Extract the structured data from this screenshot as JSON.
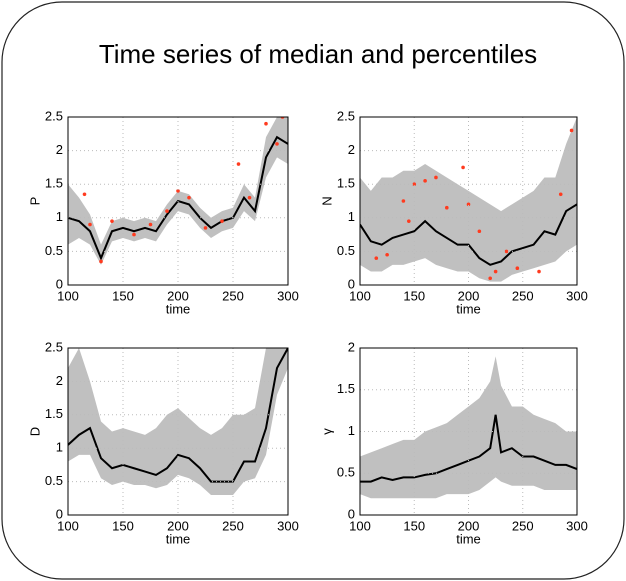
{
  "title": "Time series of median and percentiles",
  "chart_data": [
    {
      "type": "line",
      "ylabel": "P",
      "xlabel": "time",
      "xlim": [
        100,
        300
      ],
      "ylim": [
        0,
        2.5
      ],
      "xticks": [
        100,
        150,
        200,
        250,
        300
      ],
      "yticks": [
        0,
        0.5,
        1,
        1.5,
        2,
        2.5
      ],
      "grid": true,
      "x": [
        100,
        110,
        120,
        130,
        140,
        150,
        160,
        170,
        180,
        190,
        200,
        210,
        220,
        230,
        240,
        250,
        260,
        270,
        280,
        290,
        300
      ],
      "series": [
        {
          "color": "#000000",
          "values": [
            1.0,
            0.95,
            0.8,
            0.4,
            0.8,
            0.85,
            0.8,
            0.85,
            0.8,
            1.05,
            1.25,
            1.2,
            1.0,
            0.85,
            0.95,
            1.0,
            1.3,
            1.1,
            1.9,
            2.2,
            2.1
          ]
        }
      ],
      "band": {
        "color": "#c0c0c0",
        "lower": [
          0.6,
          0.7,
          0.6,
          0.3,
          0.65,
          0.7,
          0.65,
          0.7,
          0.65,
          0.9,
          1.1,
          1.05,
          0.85,
          0.7,
          0.8,
          0.85,
          1.1,
          0.95,
          1.6,
          1.9,
          1.8
        ],
        "upper": [
          1.5,
          1.3,
          1.05,
          0.6,
          0.95,
          1.0,
          0.95,
          1.0,
          0.95,
          1.2,
          1.4,
          1.35,
          1.15,
          1.0,
          1.1,
          1.15,
          1.5,
          1.3,
          2.2,
          2.5,
          2.5
        ]
      },
      "points": {
        "color": "#ff3b1f",
        "x": [
          115,
          120,
          130,
          140,
          160,
          175,
          190,
          200,
          210,
          225,
          240,
          255,
          265,
          280,
          290,
          295
        ],
        "values": [
          1.35,
          0.9,
          0.35,
          0.95,
          0.75,
          0.9,
          1.1,
          1.4,
          1.3,
          0.85,
          0.95,
          1.8,
          1.3,
          2.4,
          2.1,
          2.5
        ]
      }
    },
    {
      "type": "line",
      "ylabel": "N",
      "xlabel": "time",
      "xlim": [
        100,
        300
      ],
      "ylim": [
        0,
        2.5
      ],
      "xticks": [
        100,
        150,
        200,
        250,
        300
      ],
      "yticks": [
        0,
        0.5,
        1,
        1.5,
        2,
        2.5
      ],
      "grid": true,
      "x": [
        100,
        110,
        120,
        130,
        140,
        150,
        160,
        170,
        180,
        190,
        200,
        210,
        220,
        230,
        240,
        250,
        260,
        270,
        280,
        290,
        300
      ],
      "series": [
        {
          "color": "#000000",
          "values": [
            0.9,
            0.65,
            0.6,
            0.7,
            0.75,
            0.8,
            0.95,
            0.8,
            0.7,
            0.6,
            0.6,
            0.4,
            0.3,
            0.35,
            0.5,
            0.55,
            0.6,
            0.8,
            0.75,
            1.1,
            1.2
          ]
        }
      ],
      "band": {
        "color": "#c0c0c0",
        "lower": [
          0.3,
          0.2,
          0.2,
          0.3,
          0.3,
          0.35,
          0.4,
          0.3,
          0.25,
          0.2,
          0.2,
          0.1,
          0.05,
          0.05,
          0.15,
          0.2,
          0.25,
          0.3,
          0.35,
          0.5,
          0.6
        ],
        "upper": [
          1.6,
          1.4,
          1.6,
          1.6,
          1.7,
          1.7,
          1.8,
          1.7,
          1.6,
          1.5,
          1.4,
          1.3,
          1.2,
          1.1,
          1.2,
          1.3,
          1.4,
          1.6,
          1.6,
          2.1,
          2.5
        ]
      },
      "points": {
        "color": "#ff3b1f",
        "x": [
          115,
          125,
          140,
          145,
          150,
          160,
          170,
          180,
          195,
          200,
          210,
          220,
          225,
          235,
          245,
          265,
          285,
          295
        ],
        "values": [
          0.4,
          0.45,
          1.25,
          0.95,
          1.5,
          1.55,
          1.6,
          1.15,
          1.75,
          1.2,
          0.8,
          0.1,
          0.2,
          0.5,
          0.25,
          0.2,
          1.35,
          2.3
        ]
      }
    },
    {
      "type": "line",
      "ylabel": "D",
      "xlabel": "time",
      "xlim": [
        100,
        300
      ],
      "ylim": [
        0,
        2.5
      ],
      "xticks": [
        100,
        150,
        200,
        250,
        300
      ],
      "yticks": [
        0,
        0.5,
        1,
        1.5,
        2,
        2.5
      ],
      "grid": true,
      "x": [
        100,
        110,
        120,
        130,
        140,
        150,
        160,
        170,
        180,
        190,
        200,
        210,
        220,
        230,
        240,
        250,
        260,
        270,
        280,
        290,
        300
      ],
      "series": [
        {
          "color": "#000000",
          "values": [
            1.05,
            1.2,
            1.3,
            0.85,
            0.7,
            0.75,
            0.7,
            0.65,
            0.6,
            0.7,
            0.9,
            0.85,
            0.7,
            0.5,
            0.5,
            0.5,
            0.8,
            0.8,
            1.3,
            2.2,
            2.5
          ]
        }
      ],
      "band": {
        "color": "#c0c0c0",
        "lower": [
          0.8,
          0.9,
          0.9,
          0.55,
          0.45,
          0.5,
          0.45,
          0.45,
          0.4,
          0.45,
          0.6,
          0.55,
          0.45,
          0.3,
          0.3,
          0.3,
          0.5,
          0.55,
          0.9,
          1.8,
          2.2
        ],
        "upper": [
          2.2,
          2.5,
          2.0,
          1.4,
          1.25,
          1.3,
          1.25,
          1.2,
          1.3,
          1.5,
          1.6,
          1.45,
          1.3,
          1.2,
          1.3,
          1.5,
          1.5,
          1.6,
          2.5,
          2.5,
          2.5
        ]
      }
    },
    {
      "type": "line",
      "ylabel": "γ",
      "xlabel": "time",
      "xlim": [
        100,
        300
      ],
      "ylim": [
        0,
        2
      ],
      "xticks": [
        100,
        150,
        200,
        250,
        300
      ],
      "yticks": [
        0,
        0.5,
        1,
        1.5,
        2
      ],
      "grid": true,
      "x": [
        100,
        110,
        120,
        130,
        140,
        150,
        160,
        170,
        180,
        190,
        200,
        210,
        220,
        225,
        230,
        240,
        250,
        260,
        270,
        280,
        290,
        300
      ],
      "series": [
        {
          "color": "#000000",
          "values": [
            0.4,
            0.4,
            0.45,
            0.42,
            0.45,
            0.45,
            0.48,
            0.5,
            0.55,
            0.6,
            0.65,
            0.7,
            0.8,
            1.2,
            0.75,
            0.8,
            0.7,
            0.7,
            0.65,
            0.6,
            0.6,
            0.55
          ]
        }
      ],
      "band": {
        "color": "#c0c0c0",
        "lower": [
          0.25,
          0.2,
          0.2,
          0.2,
          0.2,
          0.2,
          0.2,
          0.2,
          0.25,
          0.25,
          0.25,
          0.3,
          0.4,
          0.45,
          0.4,
          0.35,
          0.35,
          0.35,
          0.3,
          0.3,
          0.3,
          0.3
        ],
        "upper": [
          0.7,
          0.75,
          0.8,
          0.85,
          0.9,
          0.9,
          1.0,
          1.05,
          1.1,
          1.2,
          1.3,
          1.4,
          1.6,
          1.9,
          1.55,
          1.3,
          1.3,
          1.2,
          1.15,
          1.1,
          1.0,
          1.0
        ]
      }
    }
  ]
}
